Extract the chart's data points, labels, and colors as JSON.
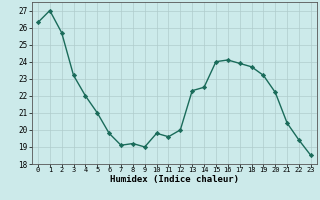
{
  "x": [
    0,
    1,
    2,
    3,
    4,
    5,
    6,
    7,
    8,
    9,
    10,
    11,
    12,
    13,
    14,
    15,
    16,
    17,
    18,
    19,
    20,
    21,
    22,
    23
  ],
  "y": [
    26.3,
    27.0,
    25.7,
    23.2,
    22.0,
    21.0,
    19.8,
    19.1,
    19.2,
    19.0,
    19.8,
    19.6,
    20.0,
    22.3,
    22.5,
    24.0,
    24.1,
    23.9,
    23.7,
    23.2,
    22.2,
    20.4,
    19.4,
    18.5
  ],
  "line_color": "#1a6b5a",
  "marker": "D",
  "marker_size": 2.2,
  "bg_color": "#cceaea",
  "grid_color": "#b0cccc",
  "xlabel": "Humidex (Indice chaleur)",
  "ylim": [
    18,
    27.5
  ],
  "xlim": [
    -0.5,
    23.5
  ],
  "yticks": [
    18,
    19,
    20,
    21,
    22,
    23,
    24,
    25,
    26,
    27
  ],
  "xtick_labels": [
    "0",
    "1",
    "2",
    "3",
    "4",
    "5",
    "6",
    "7",
    "8",
    "9",
    "10",
    "11",
    "12",
    "13",
    "14",
    "15",
    "16",
    "17",
    "18",
    "19",
    "20",
    "21",
    "22",
    "23"
  ]
}
